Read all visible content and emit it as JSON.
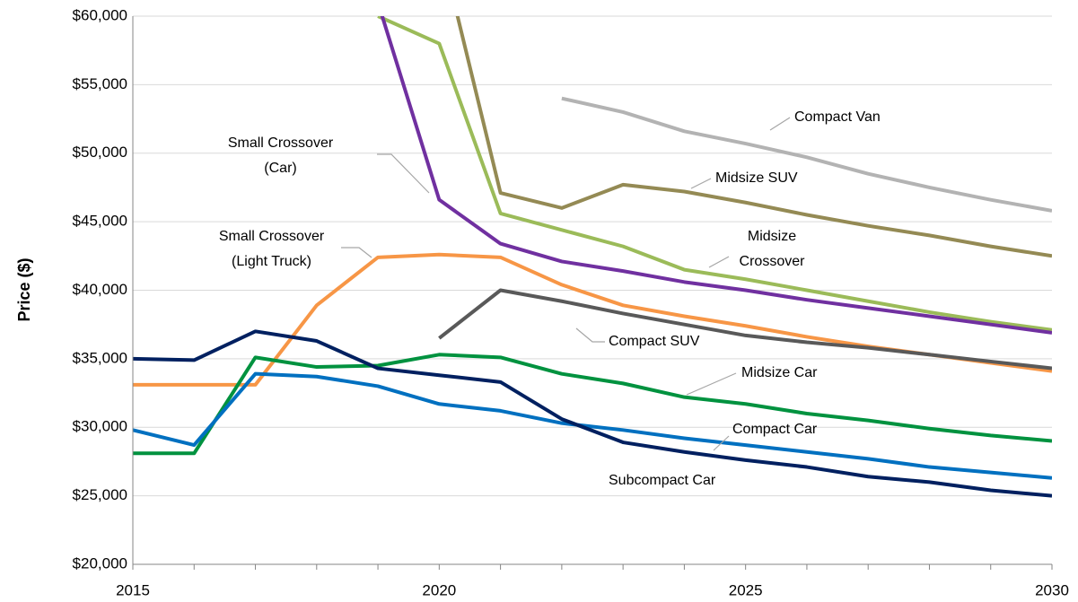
{
  "chart_data": {
    "type": "line",
    "y_label": "Price ($)",
    "x": [
      2015,
      2016,
      2017,
      2018,
      2019,
      2020,
      2021,
      2022,
      2023,
      2024,
      2025,
      2026,
      2027,
      2028,
      2029,
      2030
    ],
    "xlim": [
      2015,
      2030
    ],
    "xticks": [
      2015,
      2020,
      2025,
      2030
    ],
    "ylim": [
      20000,
      60000
    ],
    "yticks": [
      {
        "value": 20000,
        "label": "$20,000"
      },
      {
        "value": 25000,
        "label": "$25,000"
      },
      {
        "value": 30000,
        "label": "$30,000"
      },
      {
        "value": 35000,
        "label": "$35,000"
      },
      {
        "value": 40000,
        "label": "$40,000"
      },
      {
        "value": 45000,
        "label": "$45,000"
      },
      {
        "value": 50000,
        "label": "$50,000"
      },
      {
        "value": 55000,
        "label": "$55,000"
      },
      {
        "value": 60000,
        "label": "$60,000"
      }
    ],
    "grid": true,
    "series": [
      {
        "name": "Compact Van",
        "color": "#b3b3b3",
        "values": [
          null,
          null,
          null,
          null,
          null,
          null,
          null,
          54000,
          53000,
          51600,
          50700,
          49700,
          48500,
          47500,
          46600,
          45800
        ]
      },
      {
        "name": "Midsize SUV",
        "color": "#948a54",
        "values": [
          null,
          null,
          null,
          null,
          null,
          65500,
          47100,
          46000,
          47700,
          47200,
          46400,
          45500,
          44700,
          44000,
          43200,
          42500
        ]
      },
      {
        "name": "Midsize Crossover",
        "color": "#9bbb59",
        "values": [
          null,
          null,
          null,
          null,
          60000,
          58000,
          45600,
          44400,
          43200,
          41500,
          40800,
          40000,
          39200,
          38400,
          37700,
          37100
        ]
      },
      {
        "name": "Small Crossover (Car)",
        "color": "#7030a0",
        "values": [
          null,
          null,
          null,
          null,
          61000,
          46600,
          43400,
          42100,
          41400,
          40600,
          40000,
          39300,
          38700,
          38100,
          37500,
          36900
        ]
      },
      {
        "name": "Small Crossover (Light Truck)",
        "color": "#f79646",
        "values": [
          33100,
          33100,
          33100,
          38900,
          42400,
          42600,
          42400,
          40400,
          38900,
          38100,
          37400,
          36600,
          35900,
          35300,
          34700,
          34100
        ]
      },
      {
        "name": "Compact SUV",
        "color": "#595959",
        "values": [
          null,
          null,
          null,
          null,
          null,
          36500,
          40000,
          39200,
          38300,
          37500,
          36700,
          36200,
          35800,
          35300,
          34800,
          34300
        ]
      },
      {
        "name": "Midsize Car",
        "color": "#00923f",
        "values": [
          28100,
          28100,
          35100,
          34400,
          34500,
          35300,
          35100,
          33900,
          33200,
          32200,
          31700,
          31000,
          30500,
          29900,
          29400,
          29000
        ]
      },
      {
        "name": "Compact Car",
        "color": "#0070c0",
        "values": [
          29800,
          28700,
          33900,
          33700,
          33000,
          31700,
          31200,
          30300,
          29800,
          29200,
          28700,
          28200,
          27700,
          27100,
          26700,
          26300
        ]
      },
      {
        "name": "Subcompact Car",
        "color": "#002060",
        "values": [
          35000,
          34900,
          37000,
          36300,
          34300,
          33800,
          33300,
          30600,
          28900,
          28200,
          27600,
          27100,
          26400,
          26000,
          25400,
          25000
        ]
      }
    ]
  }
}
